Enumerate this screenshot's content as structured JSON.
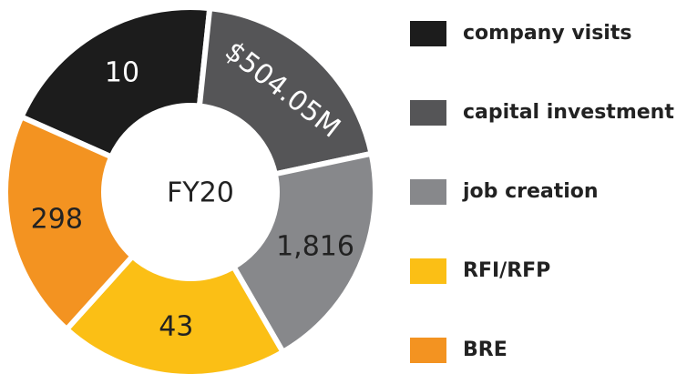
{
  "center": "FY20",
  "segments": [
    {
      "name": "company visits",
      "label": "10",
      "color": "#1c1c1c",
      "text_color": "#ffffff"
    },
    {
      "name": "capital investment",
      "label": "$504.05M",
      "color": "#555557",
      "text_color": "#ffffff"
    },
    {
      "name": "job creation",
      "label": "1,816",
      "color": "#87888b",
      "text_color": "#222222"
    },
    {
      "name": "RFI/RFP",
      "label": "43",
      "color": "#fbbf15",
      "text_color": "#222222"
    },
    {
      "name": "BRE",
      "label": "298",
      "color": "#f39321",
      "text_color": "#222222"
    }
  ]
}
